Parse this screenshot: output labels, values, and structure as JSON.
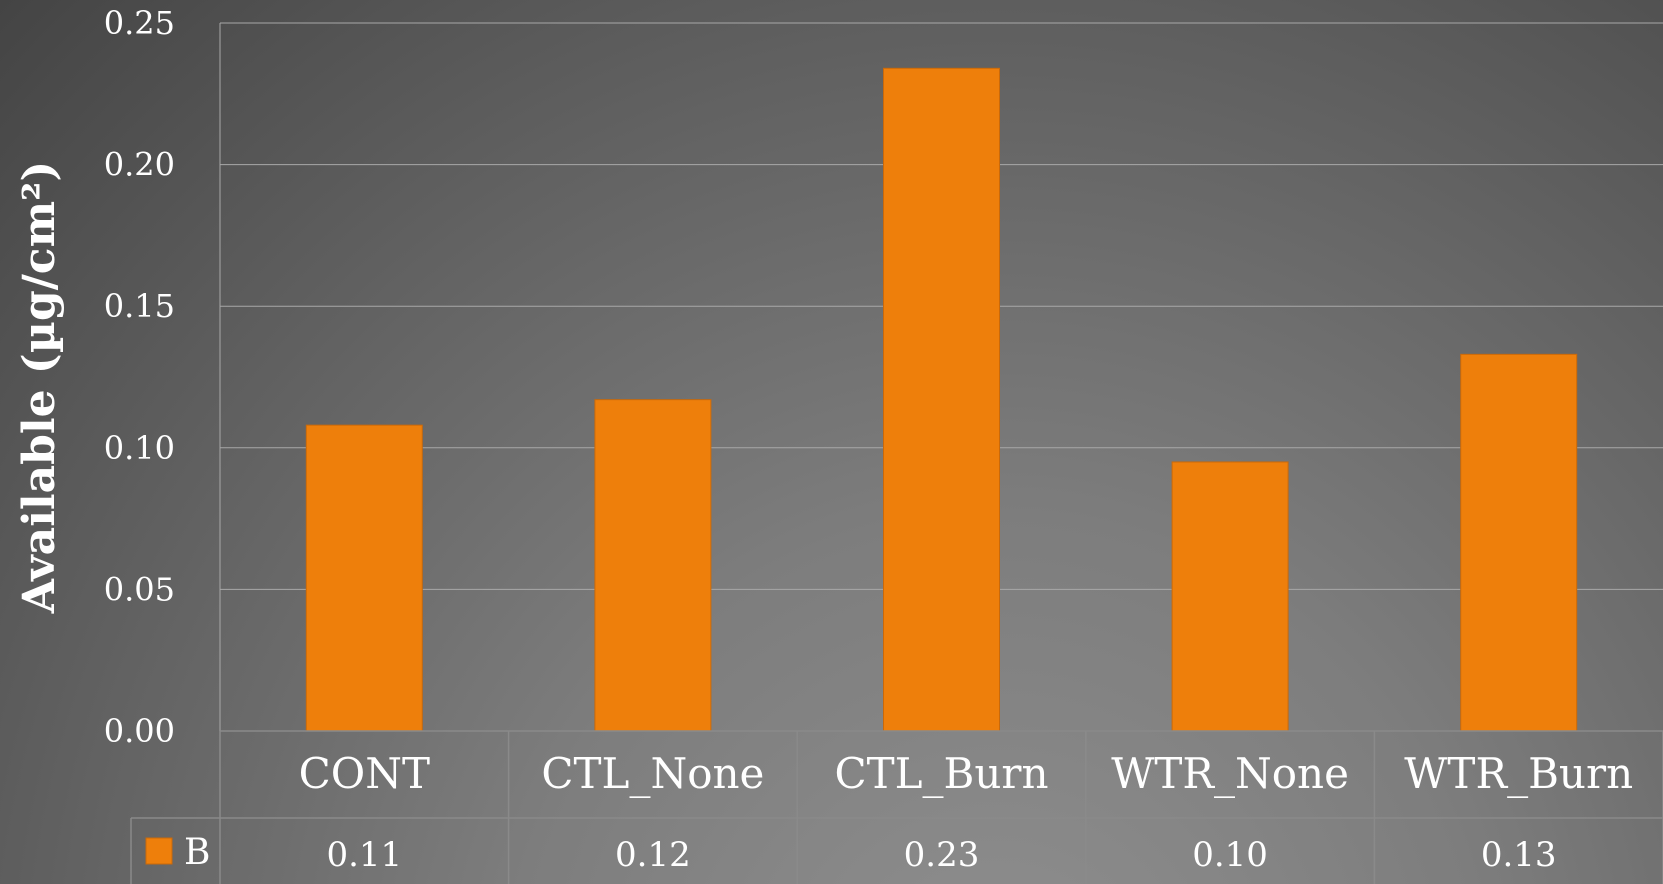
{
  "chart_data": {
    "type": "bar",
    "categories": [
      "CONT",
      "CTL_None",
      "CTL_Burn",
      "WTR_None",
      "WTR_Burn"
    ],
    "series": [
      {
        "name": "B",
        "values": [
          0.108,
          0.117,
          0.234,
          0.095,
          0.133
        ],
        "labels": [
          "0.11",
          "0.12",
          "0.23",
          "0.10",
          "0.13"
        ],
        "color": "#EE7F0B"
      }
    ],
    "ylabel": "Available (µg/cm²)",
    "ylim": [
      0,
      0.25
    ],
    "yticks": [
      "0.00",
      "0.05",
      "0.10",
      "0.15",
      "0.20",
      "0.25"
    ],
    "grid": true,
    "legend": "data-table",
    "data_table": true
  },
  "colors": {
    "bar": "#EE7F0B",
    "bar_edge": "#c9690a",
    "gridline": "#a8a8a8",
    "table_line": "#8a8a8a"
  }
}
